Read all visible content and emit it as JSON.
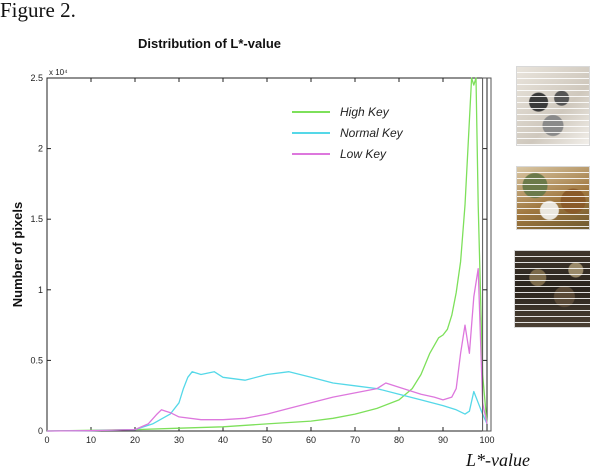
{
  "figure_caption": "Figure 2.",
  "chart_data": {
    "type": "line",
    "title": "Distribution of L*-value",
    "xlabel": "L*-value",
    "ylabel": "Number of pixels",
    "y_exponent_label": "x 10⁴",
    "xlim": [
      0,
      100
    ],
    "ylim": [
      0,
      2.5
    ],
    "xticks": [
      0,
      10,
      20,
      30,
      40,
      50,
      60,
      70,
      80,
      90,
      100
    ],
    "yticks": [
      0,
      0.5,
      1,
      1.5,
      2,
      2.5
    ],
    "ytick_labels": [
      "0",
      "0.5",
      "1",
      "1.5",
      "2",
      "2.5"
    ],
    "grid": false,
    "legend_position": "top-right",
    "series": [
      {
        "name": "High Key",
        "color": "#7de05a",
        "x": [
          0,
          20,
          30,
          40,
          50,
          55,
          60,
          65,
          70,
          75,
          80,
          83,
          85,
          87,
          89,
          90,
          91,
          92,
          93,
          94,
          95,
          96,
          96.5,
          97,
          97.5,
          98,
          99,
          100
        ],
        "y": [
          0,
          0.01,
          0.02,
          0.03,
          0.05,
          0.06,
          0.07,
          0.09,
          0.12,
          0.16,
          0.22,
          0.3,
          0.4,
          0.55,
          0.66,
          0.68,
          0.72,
          0.82,
          0.98,
          1.2,
          1.6,
          2.2,
          2.5,
          2.45,
          2.5,
          1.6,
          0.4,
          0.05
        ]
      },
      {
        "name": "Normal Key",
        "color": "#55d8e8",
        "x": [
          0,
          10,
          20,
          24,
          28,
          30,
          31,
          32,
          33,
          35,
          38,
          40,
          45,
          50,
          55,
          60,
          65,
          70,
          75,
          80,
          85,
          90,
          93,
          95,
          96,
          97,
          98,
          99,
          100
        ],
        "y": [
          0,
          0.003,
          0.01,
          0.05,
          0.12,
          0.2,
          0.3,
          0.38,
          0.42,
          0.4,
          0.42,
          0.38,
          0.36,
          0.4,
          0.42,
          0.38,
          0.34,
          0.32,
          0.3,
          0.26,
          0.22,
          0.18,
          0.15,
          0.12,
          0.14,
          0.28,
          0.2,
          0.12,
          0.05
        ]
      },
      {
        "name": "Low Key",
        "color": "#dd77dd",
        "x": [
          0,
          10,
          20,
          23,
          25,
          26,
          27,
          28,
          30,
          35,
          40,
          45,
          50,
          55,
          60,
          65,
          70,
          75,
          77,
          80,
          85,
          88,
          90,
          92,
          93,
          94,
          95,
          96,
          97,
          98,
          99,
          100
        ],
        "y": [
          0,
          0.003,
          0.01,
          0.05,
          0.12,
          0.15,
          0.14,
          0.13,
          0.1,
          0.08,
          0.08,
          0.09,
          0.12,
          0.16,
          0.2,
          0.24,
          0.27,
          0.3,
          0.34,
          0.31,
          0.26,
          0.24,
          0.22,
          0.24,
          0.3,
          0.55,
          0.75,
          0.55,
          0.95,
          1.15,
          0.2,
          0.05
        ]
      }
    ]
  },
  "thumbnails": [
    {
      "name": "high-key-thumbnail"
    },
    {
      "name": "normal-key-thumbnail"
    },
    {
      "name": "low-key-thumbnail"
    }
  ]
}
